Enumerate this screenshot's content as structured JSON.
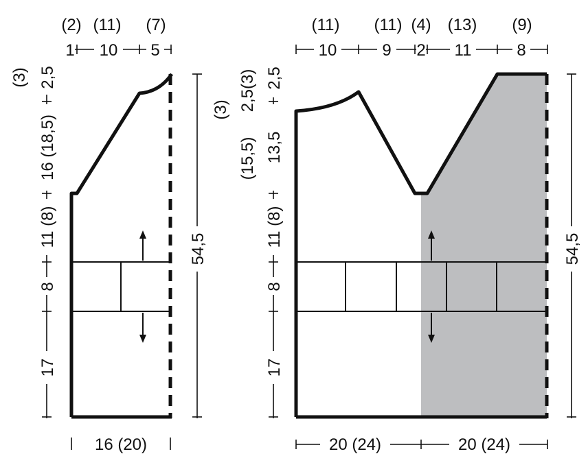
{
  "shade_color": "#bdbec0",
  "line_color": "#111111",
  "back": {
    "top_sizes": [
      "(2)",
      "(11)",
      "(7)"
    ],
    "top_dims": [
      "1",
      "10",
      "5"
    ],
    "left_sizes": [
      "(3)"
    ],
    "left_dims": [
      "2,5",
      "16 (18,5)",
      "11 (8)",
      "8",
      "17"
    ],
    "right_dim": "54,5",
    "bottom_dim": "16 (20)"
  },
  "front": {
    "top_sizes": [
      "(11)",
      "(11)",
      "(4)",
      "(13)",
      "(9)"
    ],
    "top_dims": [
      "10",
      "9",
      "2",
      "11",
      "8"
    ],
    "left_sizes": [
      "(3)",
      "(15,5)"
    ],
    "left_dims": [
      "2,5(3)",
      "2,5",
      "13,5",
      "11 (8)",
      "8",
      "17"
    ],
    "right_dim": "54,5",
    "bottom_dims": [
      "20 (24)",
      "20 (24)"
    ]
  }
}
